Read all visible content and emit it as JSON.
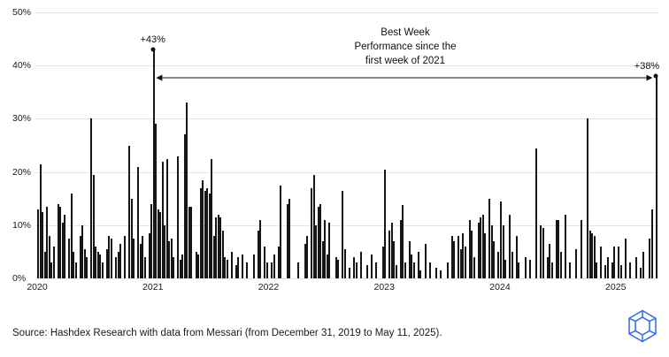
{
  "chart_data": {
    "type": "bar",
    "title": "",
    "xlabel": "",
    "ylabel": "",
    "unit": "%",
    "ylim": [
      0,
      50
    ],
    "grid": true,
    "legend": false,
    "yticks": [
      {
        "value": 0,
        "label": "0%"
      },
      {
        "value": 10,
        "label": "10%"
      },
      {
        "value": 20,
        "label": "20%"
      },
      {
        "value": 30,
        "label": "30%"
      },
      {
        "value": 40,
        "label": "40%"
      },
      {
        "value": 50,
        "label": "50%"
      }
    ],
    "xticks": [
      {
        "index": 0,
        "label": "2020"
      },
      {
        "index": 52,
        "label": "2021"
      },
      {
        "index": 104,
        "label": "2022"
      },
      {
        "index": 156,
        "label": "2023"
      },
      {
        "index": 208,
        "label": "2024"
      },
      {
        "index": 260,
        "label": "2025"
      }
    ],
    "values": [
      13,
      21.5,
      12.5,
      5,
      13.5,
      8,
      3,
      6,
      0,
      14,
      13.5,
      10.5,
      12,
      0,
      7.5,
      16,
      5,
      3,
      0,
      8,
      10,
      5.5,
      4,
      0,
      30,
      19.5,
      6,
      5,
      4.5,
      3,
      0,
      5.5,
      8,
      7.5,
      0,
      4,
      5,
      6.5,
      0,
      8,
      0,
      25,
      15,
      7.5,
      0,
      21,
      6.5,
      8,
      4,
      0,
      8.5,
      14,
      43,
      29,
      13,
      12.5,
      22,
      10,
      22.5,
      7,
      7.5,
      4,
      0,
      23,
      3.5,
      4.5,
      27,
      33,
      13.5,
      13.5,
      0,
      5,
      4.5,
      17,
      18.5,
      16.5,
      17,
      16,
      22.5,
      8,
      11.5,
      12,
      11.5,
      9,
      4,
      3.5,
      0,
      5,
      0,
      2.5,
      4,
      0,
      4.5,
      0,
      3,
      0,
      0,
      4.5,
      0,
      9,
      11,
      0,
      6,
      3,
      0,
      3,
      4.5,
      0,
      6,
      17.5,
      0,
      0,
      14,
      15,
      0,
      0,
      0,
      3,
      0,
      0,
      6.5,
      8,
      0,
      17,
      19.5,
      10,
      13.5,
      14,
      7,
      11,
      4.5,
      10.5,
      0,
      0,
      4,
      3.5,
      0,
      16.5,
      5.5,
      0,
      2,
      0,
      4,
      3,
      0,
      5,
      0,
      0,
      2.5,
      0,
      4.5,
      0,
      3,
      0,
      0,
      6,
      20.5,
      0,
      9,
      10.5,
      7,
      2.5,
      0,
      11,
      13.8,
      3,
      0,
      7,
      4.5,
      3,
      0,
      5,
      1.5,
      0,
      6.5,
      0,
      3,
      0,
      0,
      2,
      0,
      1.5,
      0,
      0,
      3,
      0,
      8,
      7,
      0,
      8,
      5.5,
      8.5,
      6,
      0,
      11,
      9,
      4,
      0,
      10.5,
      11.5,
      12,
      8.5,
      0,
      15,
      10,
      7,
      0,
      5,
      14.5,
      10,
      3.5,
      0,
      12,
      5,
      0,
      8,
      3,
      0,
      0,
      4,
      0,
      3.5,
      0,
      0,
      24.5,
      0,
      10,
      9.5,
      0,
      4,
      6.5,
      3,
      0,
      11,
      11,
      5,
      0,
      12,
      0,
      3,
      0,
      0,
      5.5,
      0,
      11,
      0,
      0,
      30,
      9,
      8.5,
      8,
      3,
      0,
      6,
      0,
      2.5,
      4,
      0,
      3,
      6,
      0,
      6,
      2.5,
      0,
      7.5,
      0,
      3,
      0,
      0,
      4,
      0,
      2,
      5,
      0,
      0,
      7.5,
      13,
      0,
      38
    ],
    "annotations": {
      "note": "Best Week\nPerformance since the\nfirst week of 2021",
      "peak_2021": {
        "index": 52,
        "value": 43,
        "label": "+43%"
      },
      "latest_2025": {
        "index": 278,
        "value": 38,
        "label": "+38%"
      },
      "arrow": {
        "from_index": 54,
        "to_index": 276,
        "value": 37.7
      }
    }
  },
  "footer": {
    "source": "Source: Hashdex Research with data from Messari (from December 31, 2019 to May 11, 2025).",
    "logo": "hashdex-logo",
    "logo_color": "#2f66f4"
  }
}
